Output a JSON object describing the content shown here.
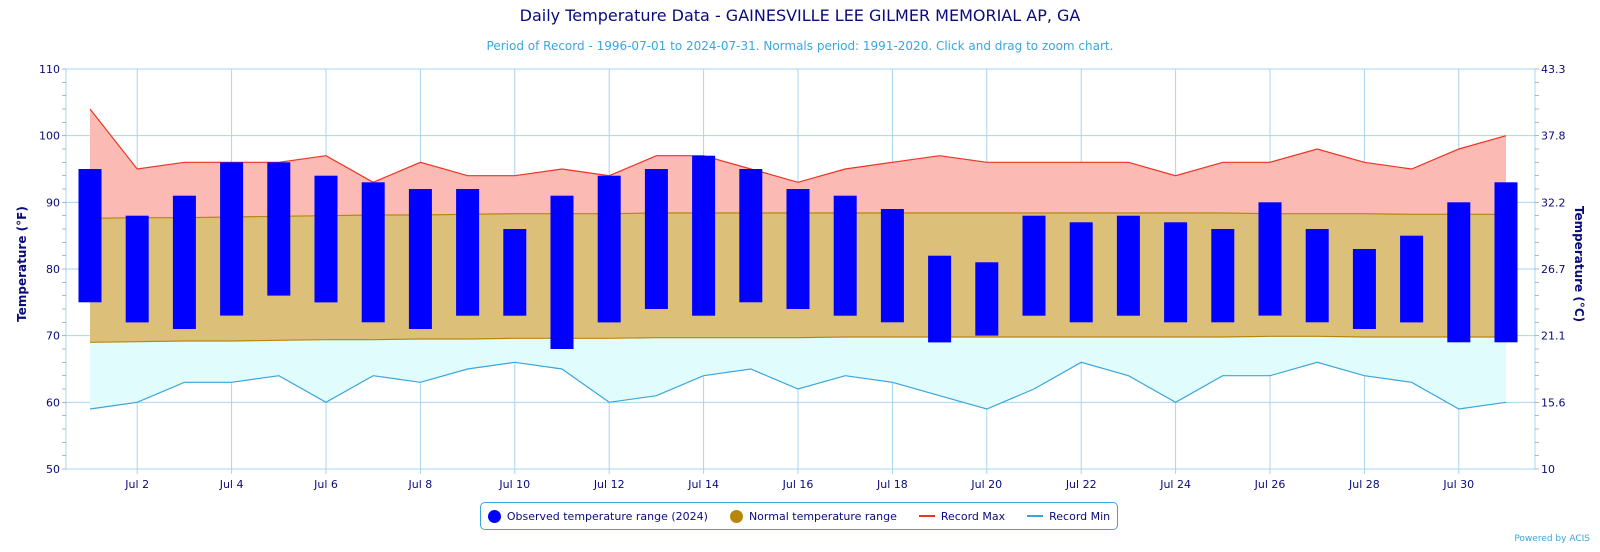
{
  "title": "Daily Temperature Data - GAINESVILLE LEE GILMER MEMORIAL AP, GA",
  "subtitle": "Period of Record - 1996-07-01 to 2024-07-31. Normals period: 1991-2020. Click and drag to zoom chart.",
  "credit": "Powered by ACIS",
  "legend": {
    "observed": "Observed temperature range (2024)",
    "normal": "Normal temperature range",
    "record_max": "Record Max",
    "record_min": "Record Min"
  },
  "colors": {
    "observed": "#0000ff",
    "normal_fill": "#dcc07a",
    "normal_line": "#b8860b",
    "record_max_fill": "#fbbab4",
    "record_max_line": "#ee3322",
    "record_min_fill": "#e0fcfc",
    "record_min_line": "#3aa6dc",
    "text": "#0a0a7a",
    "grid": "#a8d4ee"
  },
  "chart_data": {
    "type": "bar",
    "days": [
      1,
      2,
      3,
      4,
      5,
      6,
      7,
      8,
      9,
      10,
      11,
      12,
      13,
      14,
      15,
      16,
      17,
      18,
      19,
      20,
      21,
      22,
      23,
      24,
      25,
      26,
      27,
      28,
      29,
      30,
      31
    ],
    "x_tick_labels": [
      "Jul 2",
      "Jul 4",
      "Jul 6",
      "Jul 8",
      "Jul 10",
      "Jul 12",
      "Jul 14",
      "Jul 16",
      "Jul 18",
      "Jul 20",
      "Jul 22",
      "Jul 24",
      "Jul 26",
      "Jul 28",
      "Jul 30"
    ],
    "x_tick_days": [
      2,
      4,
      6,
      8,
      10,
      12,
      14,
      16,
      18,
      20,
      22,
      24,
      26,
      28,
      30
    ],
    "ylabel_left": "Temperature (°F)",
    "ylabel_right": "Temperature (°C)",
    "ylim": [
      50,
      110
    ],
    "y_ticks_left": [
      "50",
      "60",
      "70",
      "80",
      "90",
      "100",
      "110"
    ],
    "y_ticks_right": [
      "10",
      "15.6",
      "21.1",
      "26.7",
      "32.2",
      "37.8",
      "43.3"
    ],
    "observed_high": [
      95,
      88,
      91,
      96,
      96,
      94,
      93,
      92,
      92,
      86,
      91,
      94,
      95,
      97,
      95,
      92,
      91,
      89,
      82,
      81,
      88,
      87,
      88,
      87,
      86,
      90,
      86,
      83,
      85,
      90,
      93
    ],
    "observed_low": [
      75,
      72,
      71,
      73,
      76,
      75,
      72,
      71,
      73,
      73,
      68,
      72,
      74,
      73,
      75,
      74,
      73,
      72,
      69,
      70,
      73,
      72,
      73,
      72,
      72,
      73,
      72,
      71,
      72,
      69,
      69
    ],
    "normal_high": [
      87.6,
      87.7,
      87.7,
      87.8,
      87.9,
      88,
      88.1,
      88.1,
      88.2,
      88.3,
      88.3,
      88.3,
      88.4,
      88.4,
      88.4,
      88.4,
      88.4,
      88.4,
      88.4,
      88.4,
      88.4,
      88.4,
      88.4,
      88.4,
      88.4,
      88.3,
      88.3,
      88.3,
      88.2,
      88.2,
      88.2
    ],
    "normal_low": [
      69,
      69.1,
      69.2,
      69.2,
      69.3,
      69.4,
      69.4,
      69.5,
      69.5,
      69.6,
      69.6,
      69.6,
      69.7,
      69.7,
      69.7,
      69.7,
      69.8,
      69.8,
      69.8,
      69.8,
      69.8,
      69.8,
      69.8,
      69.8,
      69.8,
      69.9,
      69.9,
      69.8,
      69.8,
      69.8,
      69.8
    ],
    "record_max": [
      104,
      95,
      96,
      96,
      96,
      97,
      93,
      96,
      94,
      94,
      95,
      94,
      97,
      97,
      95,
      93,
      95,
      96,
      97,
      96,
      96,
      96,
      96,
      94,
      96,
      96,
      98,
      96,
      95,
      98,
      100
    ],
    "record_min": [
      59,
      60,
      63,
      63,
      64,
      60,
      64,
      63,
      65,
      66,
      65,
      60,
      61,
      64,
      65,
      62,
      64,
      63,
      61,
      59,
      62,
      66,
      64,
      60,
      64,
      64,
      66,
      64,
      63,
      59,
      60
    ]
  }
}
